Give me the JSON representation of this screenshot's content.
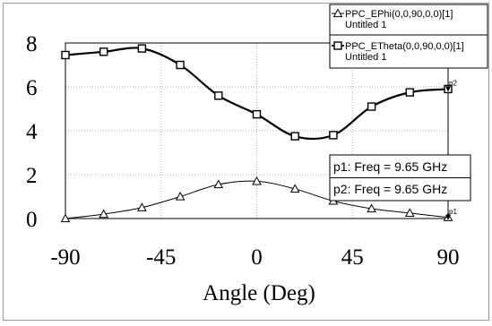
{
  "chart_data": {
    "type": "line",
    "xlabel": "Angle (Deg)",
    "ylabel": "",
    "xlim": [
      -90,
      90
    ],
    "ylim": [
      0,
      8
    ],
    "xticks": [
      -90,
      -45,
      0,
      45,
      90
    ],
    "yticks": [
      0,
      2,
      4,
      6,
      8
    ],
    "grid": true,
    "legend_position": "top-right",
    "series": [
      {
        "name": "PPC_EPhi(0,0,90,0,0)[1]",
        "sub": "Untitled 1",
        "marker": "triangle",
        "color": "#000000",
        "x": [
          -90,
          -72,
          -54,
          -36,
          -18,
          0,
          18,
          36,
          54,
          72,
          90
        ],
        "y": [
          0.0,
          0.2,
          0.5,
          1.0,
          1.55,
          1.7,
          1.35,
          0.8,
          0.45,
          0.25,
          0.05
        ]
      },
      {
        "name": "PPC_ETheta(0,0,90,0,0)[1]",
        "sub": "Untitled 1",
        "marker": "square",
        "color": "#000000",
        "x": [
          -90,
          -72,
          -54,
          -36,
          -18,
          0,
          18,
          36,
          54,
          72,
          90
        ],
        "y": [
          7.45,
          7.6,
          7.75,
          7.0,
          5.6,
          4.75,
          3.75,
          3.8,
          5.1,
          5.75,
          5.9
        ]
      }
    ],
    "markers": [
      {
        "text": "p1: Freq = 9.65 GHz",
        "tag": "p1"
      },
      {
        "text": "p2: Freq = 9.65 GHz",
        "tag": "p2"
      }
    ],
    "marker_points": [
      {
        "tag": "p1",
        "x": 90,
        "y": 0.05
      },
      {
        "tag": "p2",
        "x": 90,
        "y": 5.9
      }
    ]
  }
}
